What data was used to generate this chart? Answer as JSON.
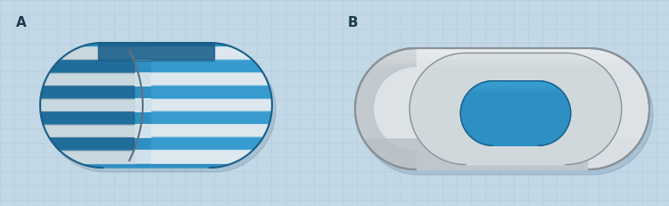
{
  "fig_width": 7.5,
  "fig_height": 2.31,
  "dpi": 100,
  "bg_color": "#c2d8e6",
  "grid_color_h": "#b5cedd",
  "grid_color_v": "#b5cedd",
  "label_A": "A",
  "label_B": "B",
  "label_fontsize": 11,
  "label_fontweight": "bold",
  "label_color": "#1a3a4a",
  "blue_main": "#2e8fc2",
  "blue_dark": "#1a5f8a",
  "blue_mid": "#3a9fd2",
  "white_stripe": "#dde8ee",
  "gray_outer": "#cdd4d9",
  "gray_light": "#dde2e6",
  "gray_dark": "#8a9298",
  "gray_mid": "#b8c0c6",
  "gray_face": "#d0d8dc",
  "shadow": "#8090a0"
}
